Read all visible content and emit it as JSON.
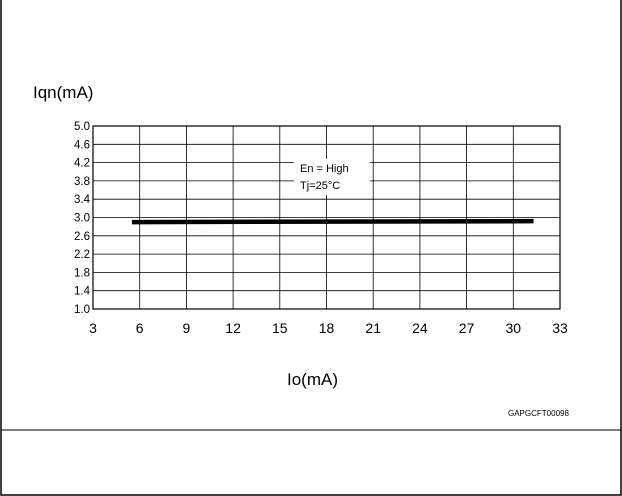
{
  "chart_data": {
    "type": "line",
    "ylabel": "Iqn(mA)",
    "xlabel": "Io(mA)",
    "x_ticks": [
      "3",
      "6",
      "9",
      "12",
      "15",
      "18",
      "21",
      "24",
      "27",
      "30",
      "33"
    ],
    "y_ticks": [
      "5.0",
      "4.6",
      "4.2",
      "3.8",
      "3.4",
      "3.0",
      "2.6",
      "2.2",
      "1.8",
      "1.4",
      "1.0"
    ],
    "xlim": [
      3,
      33
    ],
    "ylim": [
      1.0,
      5.0
    ],
    "grid": true,
    "annotation": [
      "En = High",
      "Tj=25°C"
    ],
    "series": [
      {
        "x": [
          5.5,
          31.3
        ],
        "y": [
          2.9,
          2.92
        ]
      }
    ],
    "series_color": "#000000",
    "footer_code": "GAPGCFT00098"
  }
}
